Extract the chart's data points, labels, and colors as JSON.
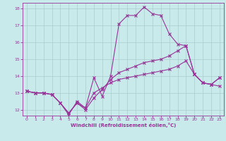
{
  "xlabel": "Windchill (Refroidissement éolien,°C)",
  "background_color": "#c8eaea",
  "line_color": "#993399",
  "grid_color": "#aacccc",
  "xlim": [
    -0.5,
    23.5
  ],
  "ylim": [
    11.65,
    18.35
  ],
  "xticks": [
    0,
    1,
    2,
    3,
    4,
    5,
    6,
    7,
    8,
    9,
    10,
    11,
    12,
    13,
    14,
    15,
    16,
    17,
    18,
    19,
    20,
    21,
    22,
    23
  ],
  "yticks": [
    12,
    13,
    14,
    15,
    16,
    17,
    18
  ],
  "line1_x": [
    0,
    1,
    2,
    3,
    4,
    5,
    6,
    7,
    8,
    9,
    10,
    11,
    12,
    13,
    14,
    15,
    16,
    17,
    18,
    19,
    20,
    21,
    22,
    23
  ],
  "line1_y": [
    13.1,
    13.0,
    13.0,
    12.9,
    12.4,
    11.7,
    12.5,
    12.1,
    13.9,
    12.8,
    14.0,
    17.1,
    17.6,
    17.6,
    18.1,
    17.7,
    17.6,
    16.5,
    15.9,
    15.8,
    14.1,
    13.6,
    13.5,
    13.9
  ],
  "line2_x": [
    0,
    1,
    2,
    3,
    4,
    5,
    6,
    7,
    8,
    9,
    10,
    11,
    12,
    13,
    14,
    15,
    16,
    17,
    18,
    19,
    20,
    21,
    22,
    23
  ],
  "line2_y": [
    13.1,
    13.0,
    13.0,
    12.9,
    12.4,
    11.8,
    12.4,
    12.0,
    12.7,
    13.2,
    13.8,
    14.2,
    14.4,
    14.6,
    14.8,
    14.9,
    15.0,
    15.2,
    15.5,
    15.8,
    14.1,
    13.6,
    13.5,
    13.9
  ],
  "line3_x": [
    0,
    1,
    2,
    3,
    4,
    5,
    6,
    7,
    8,
    9,
    10,
    11,
    12,
    13,
    14,
    15,
    16,
    17,
    18,
    19,
    20,
    21,
    22,
    23
  ],
  "line3_y": [
    13.1,
    13.0,
    13.0,
    12.9,
    12.4,
    11.8,
    12.4,
    12.1,
    13.0,
    13.3,
    13.6,
    13.8,
    13.9,
    14.0,
    14.1,
    14.2,
    14.3,
    14.4,
    14.6,
    14.9,
    14.1,
    13.6,
    13.5,
    13.4
  ]
}
